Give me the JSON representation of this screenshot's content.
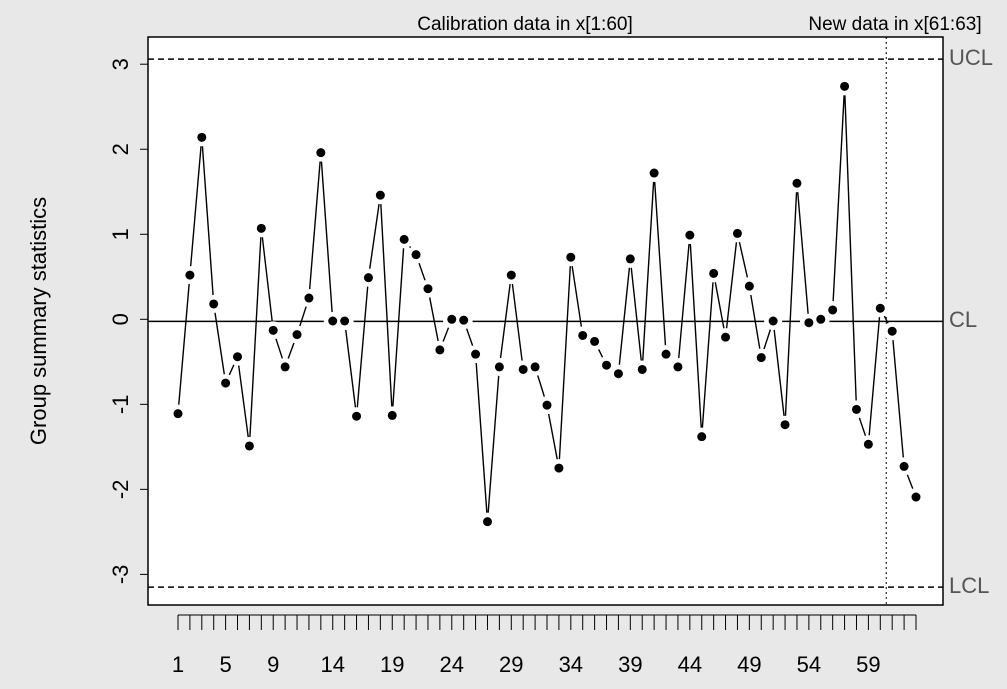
{
  "chart_data": {
    "type": "line",
    "y_label": "Group summary statistics",
    "annotations": [
      "Calibration data in x[1:60]",
      "New data in x[61:63]"
    ],
    "new_data_from": 61,
    "categories": [
      "1",
      null,
      null,
      null,
      "5",
      null,
      null,
      null,
      "9",
      null,
      null,
      null,
      null,
      "14",
      null,
      null,
      null,
      null,
      "19",
      null,
      null,
      null,
      null,
      "24",
      null,
      null,
      null,
      null,
      "29",
      null,
      null,
      null,
      null,
      "34",
      null,
      null,
      null,
      null,
      "39",
      null,
      null,
      null,
      null,
      "44",
      null,
      null,
      null,
      null,
      "49",
      null,
      null,
      null,
      null,
      "54",
      null,
      null,
      null,
      null,
      "59",
      null,
      null,
      null,
      null
    ],
    "values": [
      -1.11,
      0.52,
      2.14,
      0.18,
      -0.75,
      -0.44,
      -1.49,
      1.07,
      -0.13,
      -0.56,
      -0.18,
      0.25,
      1.96,
      -0.02,
      -0.02,
      -1.14,
      0.49,
      1.46,
      -1.13,
      0.94,
      0.76,
      0.36,
      -0.36,
      0.0,
      -0.01,
      -0.41,
      -2.38,
      -0.56,
      0.52,
      -0.59,
      -0.56,
      -1.01,
      -1.75,
      0.73,
      -0.19,
      -0.26,
      -0.54,
      -0.64,
      0.71,
      -0.59,
      1.72,
      -0.41,
      -0.56,
      0.99,
      -1.38,
      0.54,
      -0.21,
      1.01,
      0.39,
      -0.45,
      -0.02,
      -1.24,
      1.6,
      -0.04,
      0.0,
      0.11,
      2.74,
      -1.06,
      -1.47,
      0.13,
      -0.14,
      -1.73,
      -2.09
    ],
    "color": "#000000",
    "control_limits": [
      {
        "label": "UCL",
        "value": 3.06,
        "dash": true
      },
      {
        "label": "CL",
        "value": -0.025,
        "dash": false
      },
      {
        "label": "LCL",
        "value": -3.15,
        "dash": true
      }
    ],
    "ylim": [
      -3.36,
      3.32
    ],
    "yticks": [
      -3,
      -2,
      -1,
      0,
      1,
      2,
      3
    ]
  }
}
